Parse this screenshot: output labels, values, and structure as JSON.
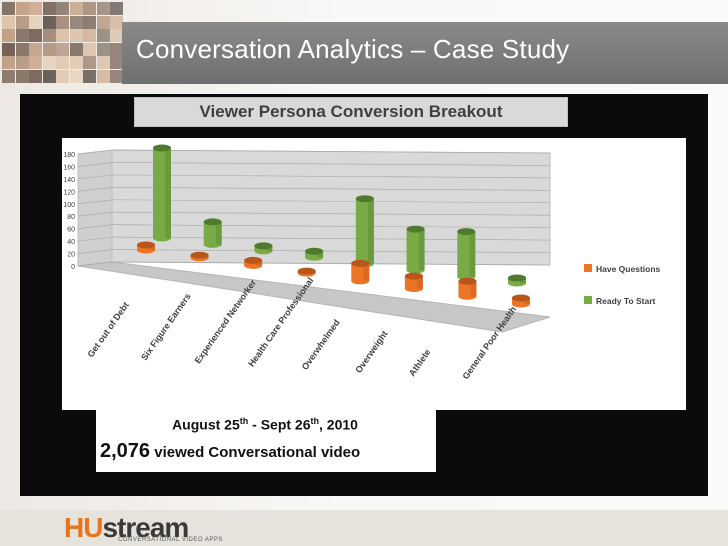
{
  "slide": {
    "title": "Conversation Analytics – Case Study",
    "subtitle": "Viewer Persona Conversion Breakout"
  },
  "note": {
    "date_start": "August 25",
    "date_start_sup": "th",
    "date_sep": " - Sept 26",
    "date_end_sup": "th",
    "date_year": ", 2010",
    "view_count": "2,076",
    "view_text": " viewed Conversational video"
  },
  "brand": {
    "logo_hu": "HU",
    "logo_stream": "stream",
    "tagline": "CONVERSATIONAL VIDEO APPS",
    "accent": "#e8741e"
  },
  "chart_data": {
    "type": "bar",
    "style": "3d-cylinder",
    "categories": [
      "Get out of Debt",
      "Six Figure Earners",
      "Experienced Networker",
      "Health Care Professional",
      "Overwhelmed",
      "Overweight",
      "Athlete",
      "General Poor Health"
    ],
    "series": [
      {
        "name": "Have Questions",
        "color": "#ec7424",
        "values": [
          10,
          5,
          10,
          4,
          35,
          25,
          30,
          12
        ]
      },
      {
        "name": "Ready To Start",
        "color": "#78ab46",
        "values": [
          180,
          45,
          10,
          12,
          130,
          82,
          90,
          10
        ]
      }
    ],
    "yticks": [
      "0",
      "20",
      "40",
      "60",
      "80",
      "100",
      "120",
      "140",
      "160",
      "180"
    ],
    "ylim": [
      0,
      180
    ],
    "grid": true,
    "legend_position": "right"
  }
}
